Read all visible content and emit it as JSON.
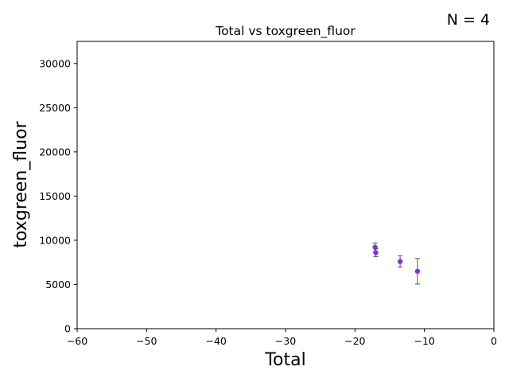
{
  "chart_data": {
    "type": "scatter",
    "title": "Total vs toxgreen_fluor",
    "annotation": "N = 4",
    "xlabel": "Total",
    "ylabel": "toxgreen_fluor",
    "xlim": [
      -60,
      0
    ],
    "ylim": [
      0,
      32500
    ],
    "xticks": [
      -60,
      -50,
      -40,
      -30,
      -20,
      -10,
      0
    ],
    "yticks": [
      0,
      5000,
      10000,
      15000,
      20000,
      25000,
      30000
    ],
    "grid": false,
    "points": [
      {
        "x": -17.1,
        "y": 9200,
        "err": 500
      },
      {
        "x": -17.0,
        "y": 8600,
        "err": 450
      },
      {
        "x": -13.5,
        "y": 7600,
        "err": 650
      },
      {
        "x": -11.0,
        "y": 6500,
        "err": 1450
      }
    ],
    "marker_color": "#8a2be2",
    "errorbar_color": "#555555"
  }
}
